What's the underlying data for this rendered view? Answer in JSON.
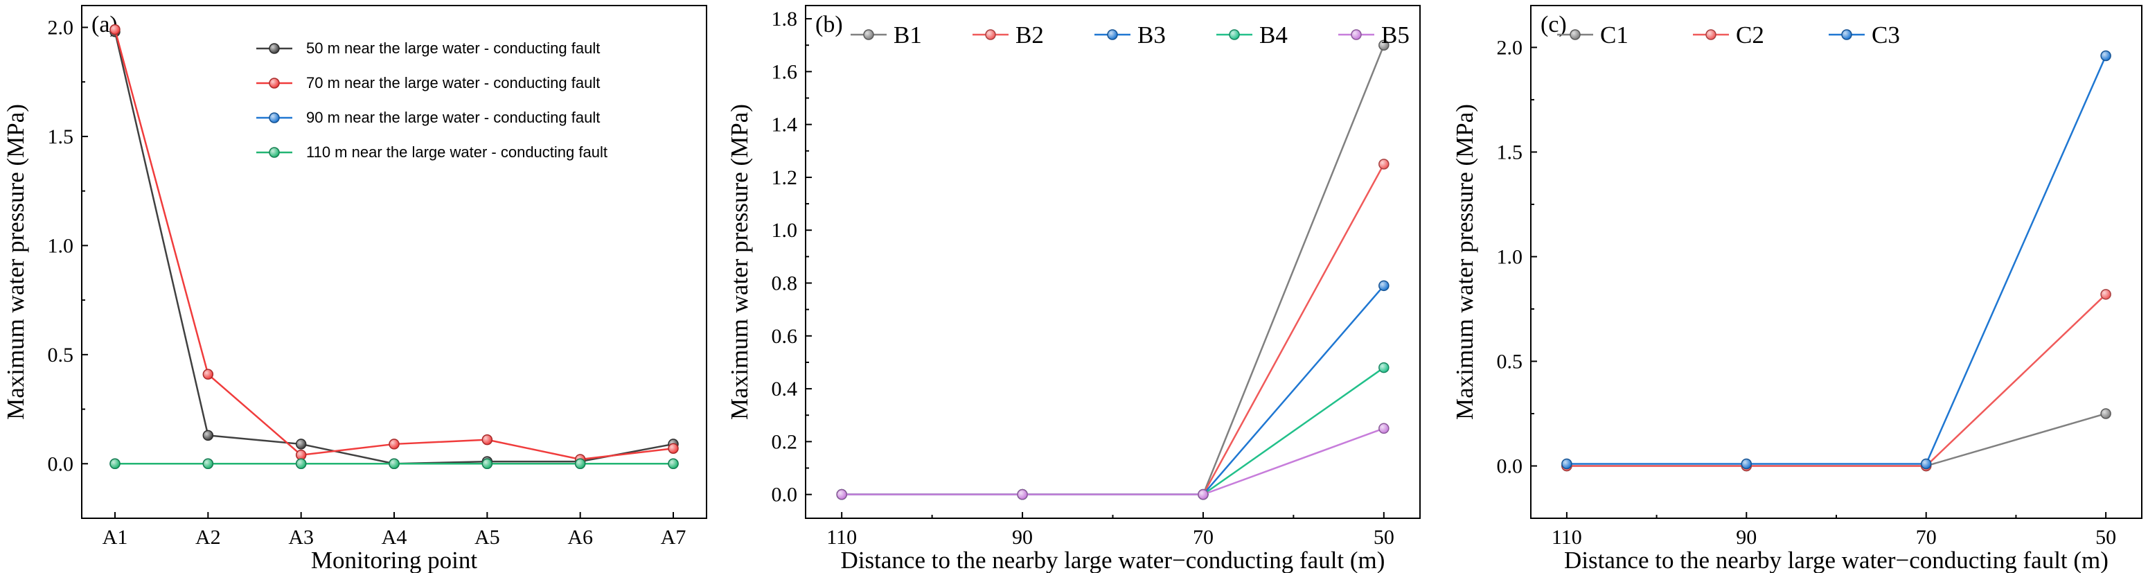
{
  "chart_data": [
    {
      "type": "line",
      "panel_label": "(a)",
      "xlabel": "Monitoring point",
      "ylabel": "Maximum water pressure (MPa)",
      "categories": [
        "A1",
        "A2",
        "A3",
        "A4",
        "A5",
        "A6",
        "A7"
      ],
      "ylim": [
        -0.25,
        2.1
      ],
      "yticks": [
        0.0,
        0.5,
        1.0,
        1.5,
        2.0
      ],
      "ytick_labels": [
        "0.0",
        "0.5",
        "1.0",
        "1.5",
        "2.0"
      ],
      "legend_position": "top-right",
      "series": [
        {
          "name": "50 m near the large water - conducting fault",
          "color": "#404040",
          "values": [
            1.98,
            0.13,
            0.09,
            0.0,
            0.01,
            0.01,
            0.09
          ]
        },
        {
          "name": "70 m near the large water - conducting fault",
          "color": "#f03c3c",
          "values": [
            1.99,
            0.41,
            0.04,
            0.09,
            0.11,
            0.02,
            0.07
          ]
        },
        {
          "name": "90 m near the large water - conducting fault",
          "color": "#1f77d2",
          "values": [
            0.0,
            0.0,
            0.0,
            0.0,
            0.0,
            0.0,
            0.0
          ]
        },
        {
          "name": "110 m near the large water - conducting fault",
          "color": "#22b573",
          "values": [
            0.0,
            0.0,
            0.0,
            0.0,
            0.0,
            0.0,
            0.0
          ]
        }
      ]
    },
    {
      "type": "line",
      "panel_label": "(b)",
      "xlabel": "Distance to the nearby large water−conducting fault (m)",
      "ylabel": "Maximum water pressure (MPa)",
      "categories": [
        "110",
        "90",
        "70",
        "50"
      ],
      "x": [
        110,
        90,
        70,
        50
      ],
      "xlim": [
        114,
        46
      ],
      "ylim": [
        -0.09,
        1.85
      ],
      "yticks": [
        0.0,
        0.2,
        0.4,
        0.6,
        0.8,
        1.0,
        1.2,
        1.4,
        1.6,
        1.8
      ],
      "ytick_labels": [
        "0.0",
        "0.2",
        "0.4",
        "0.6",
        "0.8",
        "1.0",
        "1.2",
        "1.4",
        "1.6",
        "1.8"
      ],
      "legend_position": "top",
      "series": [
        {
          "name": "B1",
          "color": "#808080",
          "values": [
            0.0,
            0.0,
            0.0,
            1.7
          ]
        },
        {
          "name": "B2",
          "color": "#f05a5a",
          "values": [
            0.0,
            0.0,
            0.0,
            1.25
          ]
        },
        {
          "name": "B3",
          "color": "#1f77d2",
          "values": [
            0.0,
            0.0,
            0.0,
            0.79
          ]
        },
        {
          "name": "B4",
          "color": "#22c08a",
          "values": [
            0.0,
            0.0,
            0.0,
            0.48
          ]
        },
        {
          "name": "B5",
          "color": "#c77ddb",
          "values": [
            0.0,
            0.0,
            0.0,
            0.25
          ]
        }
      ]
    },
    {
      "type": "line",
      "panel_label": "(c)",
      "xlabel": "Distance to the nearby large water−conducting fault (m)",
      "ylabel": "Maximum water pressure (MPa)",
      "categories": [
        "110",
        "90",
        "70",
        "50"
      ],
      "x": [
        110,
        90,
        70,
        50
      ],
      "xlim": [
        114,
        46
      ],
      "ylim": [
        -0.25,
        2.2
      ],
      "yticks": [
        0.0,
        0.5,
        1.0,
        1.5,
        2.0
      ],
      "ytick_labels": [
        "0.0",
        "0.5",
        "1.0",
        "1.5",
        "2.0"
      ],
      "legend_position": "top-left",
      "series": [
        {
          "name": "C1",
          "color": "#808080",
          "values": [
            0.0,
            0.0,
            0.0,
            0.25
          ]
        },
        {
          "name": "C2",
          "color": "#f05a5a",
          "values": [
            0.0,
            0.0,
            0.0,
            0.82
          ]
        },
        {
          "name": "C3",
          "color": "#1f77d2",
          "values": [
            0.01,
            0.01,
            0.01,
            1.96
          ]
        }
      ]
    }
  ]
}
